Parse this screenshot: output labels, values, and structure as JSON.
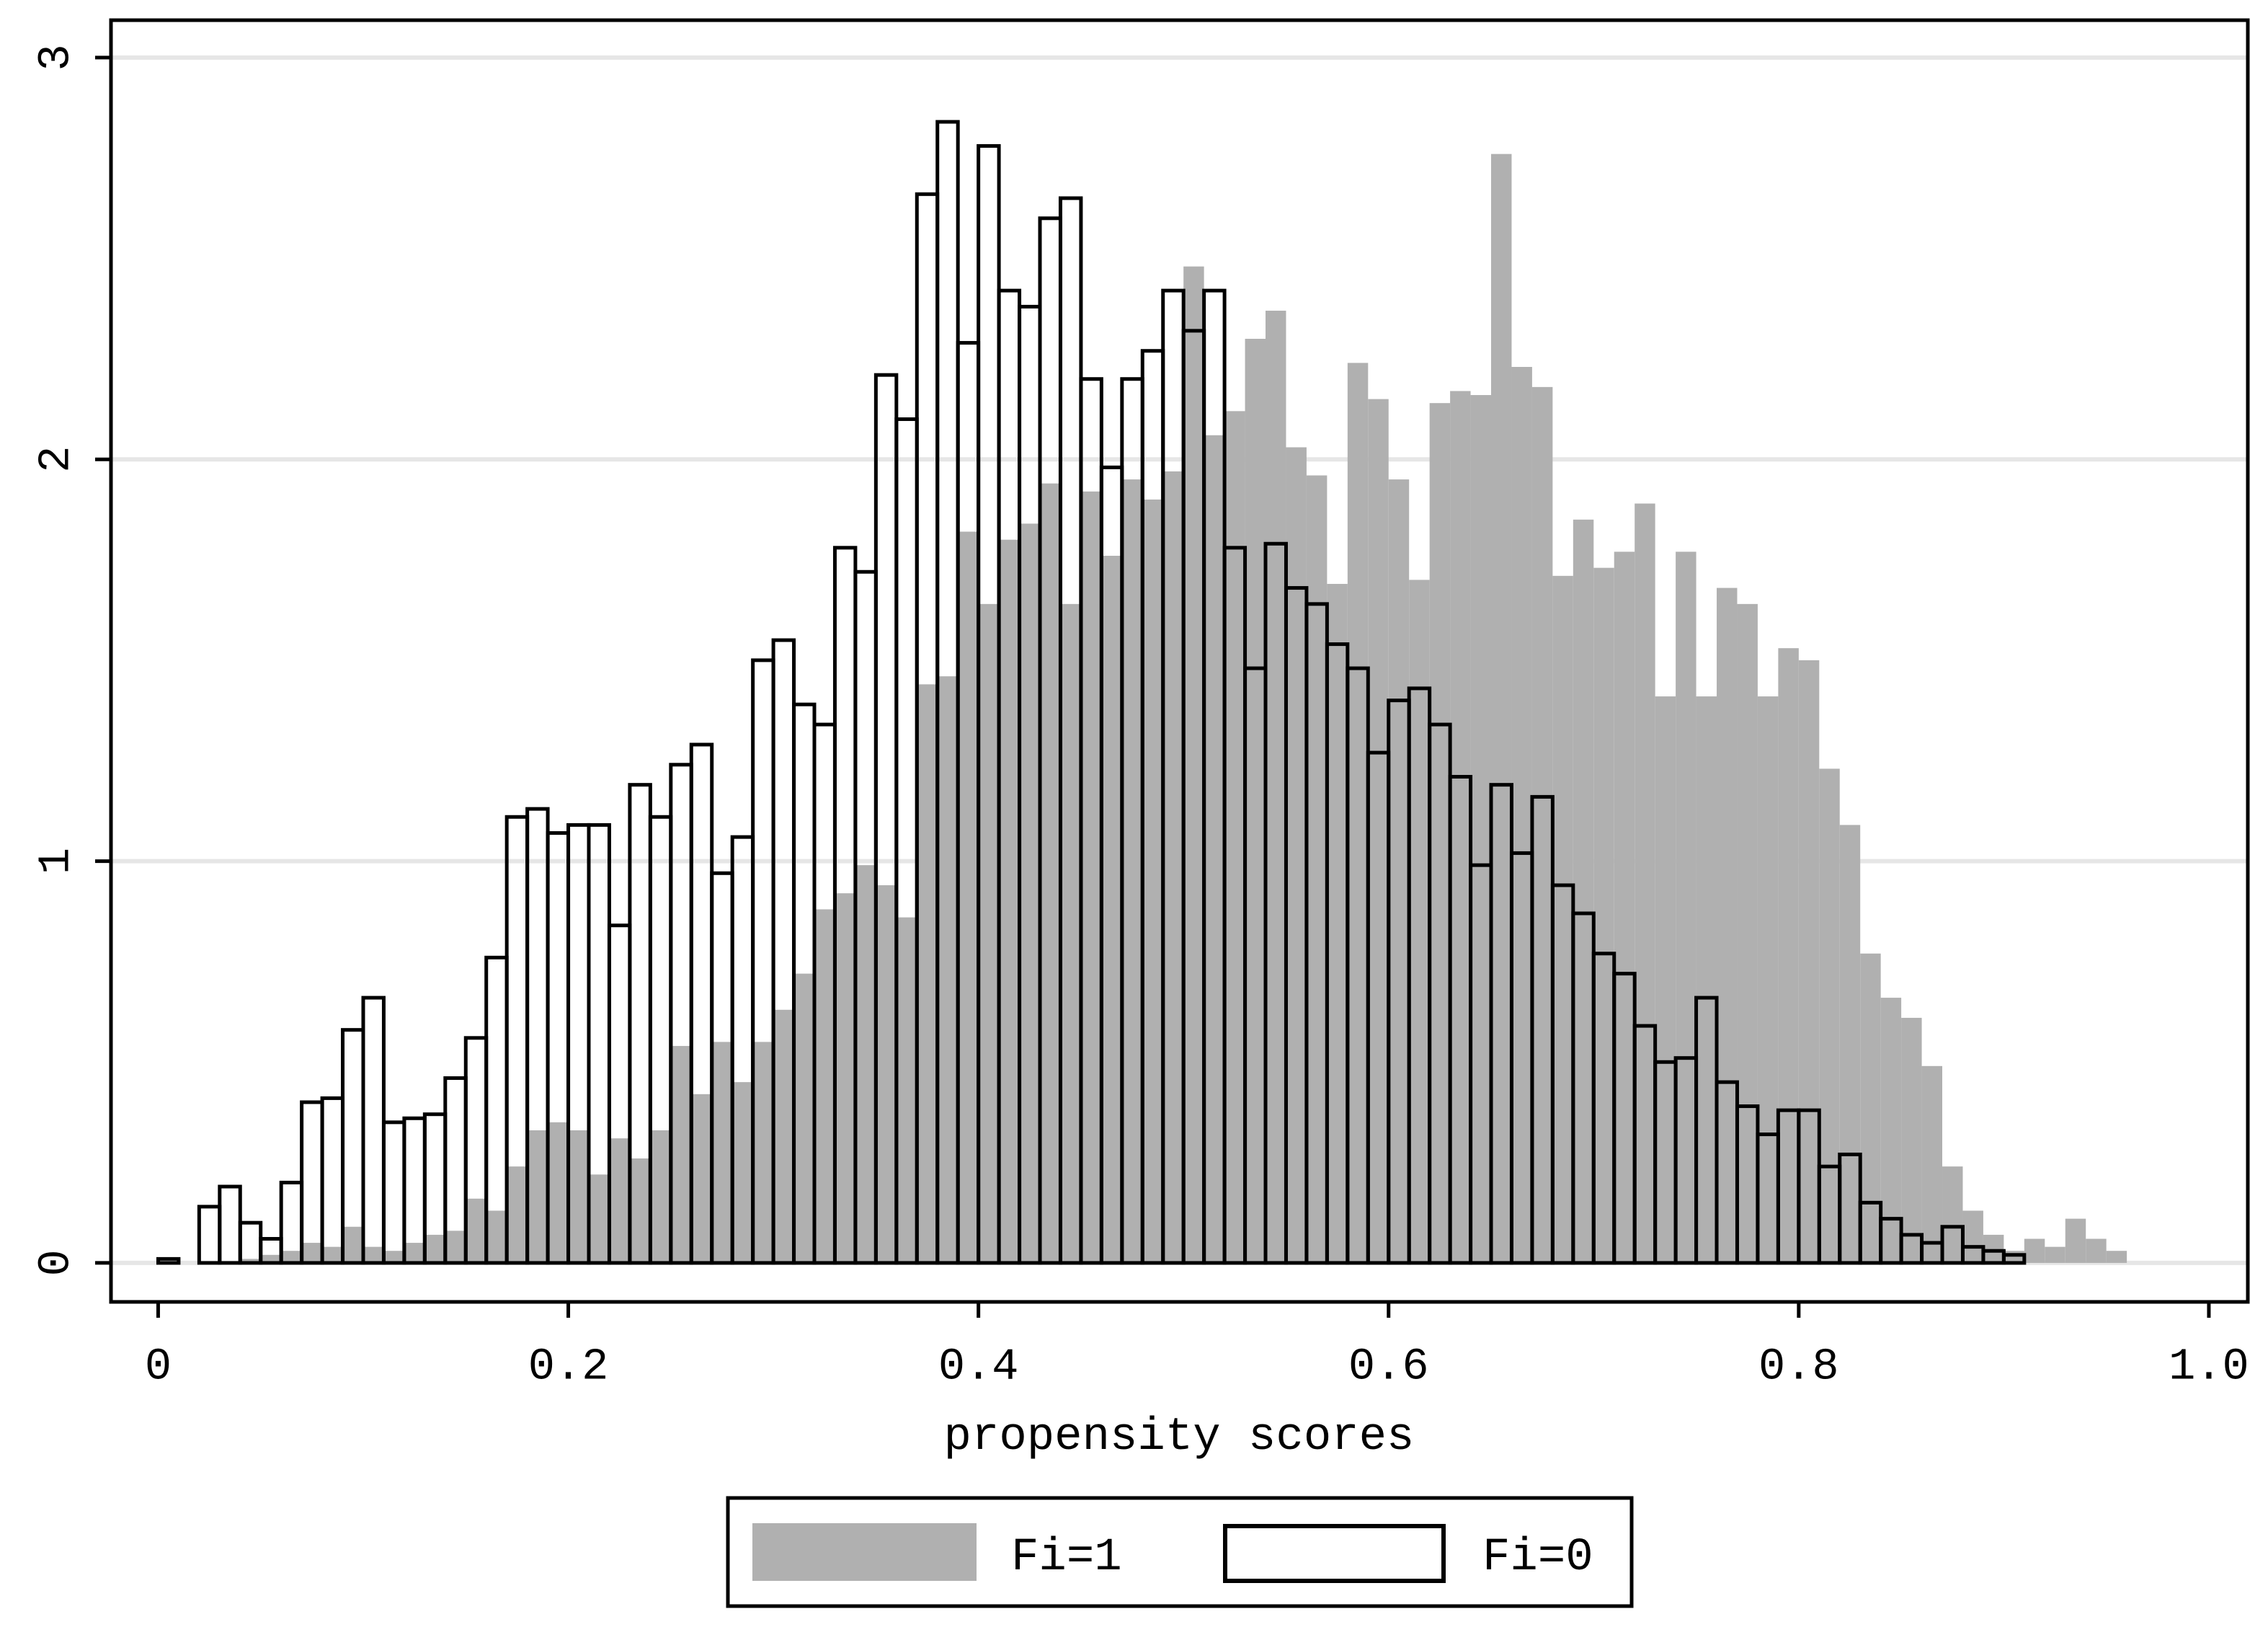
{
  "chart_data": {
    "type": "histogram",
    "xlabel": "propensity scores",
    "xlim": [
      -0.023,
      1.019
    ],
    "ylim": [
      -0.097,
      3.093
    ],
    "xticks": [
      0,
      0.2,
      0.4,
      0.6,
      0.8,
      {
        "value": 1,
        "label": "1.0"
      }
    ],
    "yticks": [
      0,
      1,
      2,
      3
    ],
    "grid": true,
    "legend": "bottom",
    "series": [
      {
        "name": "Fi=1",
        "color": "#b0b0b0",
        "fill": true,
        "bins": [
          0,
          0.01,
          0.02,
          0.03,
          0.04,
          0.05,
          0.06,
          0.07,
          0.08,
          0.09,
          0.1,
          0.11,
          0.12,
          0.13,
          0.14,
          0.15,
          0.16,
          0.17,
          0.18,
          0.19,
          0.2,
          0.21,
          0.22,
          0.23,
          0.24,
          0.25,
          0.26,
          0.27,
          0.28,
          0.29,
          0.3,
          0.31,
          0.32,
          0.33,
          0.34,
          0.35,
          0.36,
          0.37,
          0.38,
          0.39,
          0.4,
          0.41,
          0.42,
          0.43,
          0.44,
          0.45,
          0.46,
          0.47,
          0.48,
          0.49,
          0.5,
          0.51,
          0.52,
          0.53,
          0.54,
          0.55,
          0.56,
          0.57,
          0.58,
          0.59,
          0.6,
          0.61,
          0.62,
          0.63,
          0.64,
          0.65,
          0.66,
          0.67,
          0.68,
          0.69,
          0.7,
          0.71,
          0.72,
          0.73,
          0.74,
          0.75,
          0.76,
          0.77,
          0.78,
          0.79,
          0.8,
          0.81,
          0.82,
          0.83,
          0.84,
          0.85,
          0.86,
          0.87,
          0.88,
          0.89,
          0.9,
          0.91,
          0.92,
          0.93,
          0.94,
          0.95,
          0.96
        ],
        "values": [
          0,
          0,
          0,
          0,
          0.01,
          0.02,
          0.03,
          0.05,
          0.04,
          0.09,
          0.04,
          0.03,
          0.05,
          0.07,
          0.08,
          0.16,
          0.13,
          0.24,
          0.33,
          0.35,
          0.33,
          0.22,
          0.31,
          0.26,
          0.33,
          0.54,
          0.42,
          0.55,
          0.45,
          0.55,
          0.63,
          0.72,
          0.88,
          0.92,
          0.99,
          0.94,
          0.86,
          1.44,
          1.46,
          1.82,
          1.64,
          1.8,
          1.84,
          1.94,
          1.64,
          1.92,
          1.76,
          1.95,
          1.9,
          1.97,
          2.48,
          2.06,
          2.12,
          2.3,
          2.37,
          2.03,
          1.96,
          1.69,
          2.24,
          2.15,
          1.95,
          1.7,
          2.14,
          2.17,
          2.16,
          2.76,
          2.23,
          2.18,
          1.71,
          1.85,
          1.73,
          1.77,
          1.89,
          1.41,
          1.77,
          1.41,
          1.68,
          1.64,
          1.41,
          1.53,
          1.5,
          1.23,
          1.09,
          0.77,
          0.66,
          0.61,
          0.49,
          0.24,
          0.13,
          0.07,
          0.03,
          0.06,
          0.04,
          0.11,
          0.06,
          0.03
        ]
      },
      {
        "name": "Fi=0",
        "color": "#000000",
        "fill": false,
        "bins": [
          0,
          0.01,
          0.02,
          0.03,
          0.04,
          0.05,
          0.06,
          0.07,
          0.08,
          0.09,
          0.1,
          0.11,
          0.12,
          0.13,
          0.14,
          0.15,
          0.16,
          0.17,
          0.18,
          0.19,
          0.2,
          0.21,
          0.22,
          0.23,
          0.24,
          0.25,
          0.26,
          0.27,
          0.28,
          0.29,
          0.3,
          0.31,
          0.32,
          0.33,
          0.34,
          0.35,
          0.36,
          0.37,
          0.38,
          0.39,
          0.4,
          0.41,
          0.42,
          0.43,
          0.44,
          0.45,
          0.46,
          0.47,
          0.48,
          0.49,
          0.5,
          0.51,
          0.52,
          0.53,
          0.54,
          0.55,
          0.56,
          0.57,
          0.58,
          0.59,
          0.6,
          0.61,
          0.62,
          0.63,
          0.64,
          0.65,
          0.66,
          0.67,
          0.68,
          0.69,
          0.7,
          0.71,
          0.72,
          0.73,
          0.74,
          0.75,
          0.76,
          0.77,
          0.78,
          0.79,
          0.8,
          0.81,
          0.82,
          0.83,
          0.84,
          0.85,
          0.86,
          0.87,
          0.88,
          0.89,
          0.9,
          0.91
        ],
        "values": [
          0.01,
          0,
          0.14,
          0.19,
          0.1,
          0.06,
          0.2,
          0.4,
          0.41,
          0.58,
          0.66,
          0.35,
          0.36,
          0.37,
          0.46,
          0.56,
          0.76,
          1.11,
          1.13,
          1.07,
          1.09,
          1.09,
          0.84,
          1.19,
          1.11,
          1.24,
          1.29,
          0.97,
          1.06,
          1.5,
          1.55,
          1.39,
          1.34,
          1.78,
          1.72,
          2.21,
          2.1,
          2.66,
          2.84,
          2.29,
          2.78,
          2.42,
          2.38,
          2.6,
          2.65,
          2.2,
          1.98,
          2.2,
          2.27,
          2.42,
          2.32,
          2.42,
          1.78,
          1.48,
          1.79,
          1.68,
          1.64,
          1.54,
          1.48,
          1.27,
          1.4,
          1.43,
          1.34,
          1.21,
          0.99,
          1.19,
          1.02,
          1.16,
          0.94,
          0.87,
          0.77,
          0.72,
          0.59,
          0.5,
          0.51,
          0.66,
          0.45,
          0.39,
          0.32,
          0.38,
          0.38,
          0.24,
          0.27,
          0.15,
          0.11,
          0.07,
          0.05,
          0.09,
          0.04,
          0.03,
          0.02
        ]
      }
    ]
  }
}
